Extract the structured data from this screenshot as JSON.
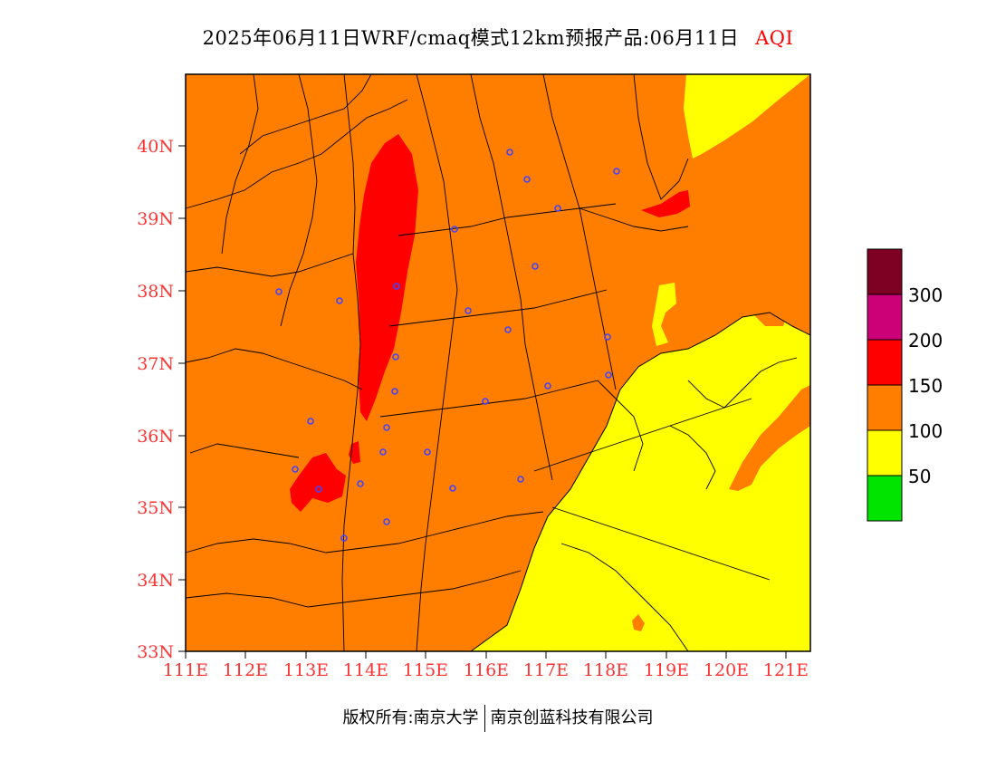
{
  "title": {
    "main": "2025年06月11日WRF/cmaq模式12km预报产品:06月11日",
    "product": "AQI"
  },
  "map": {
    "lat_ticks": [
      "40N",
      "39N",
      "38N",
      "37N",
      "36N",
      "35N",
      "34N",
      "33N"
    ],
    "lon_ticks": [
      "111E",
      "112E",
      "113E",
      "114E",
      "115E",
      "116E",
      "117E",
      "118E",
      "119E",
      "120E",
      "121E"
    ],
    "colors": {
      "level_50_100": "#ffff00",
      "level_100_150": "#ff7e00",
      "level_150_200": "#ff0000",
      "level_200_300": "#cc0077",
      "level_300_plus": "#7e0023",
      "level_0_50": "#00e400",
      "boundary": "#000000",
      "city_marker": "#4444ff",
      "tick": "#ff3333"
    }
  },
  "legend": {
    "labels": [
      "300",
      "200",
      "150",
      "100",
      "50"
    ],
    "colors": [
      "#7e0023",
      "#cc0077",
      "#ff0000",
      "#ff7e00",
      "#ffff00",
      "#00e400"
    ]
  },
  "footer": {
    "left": "版权所有:南京大学",
    "right": "南京创蓝科技有限公司"
  }
}
